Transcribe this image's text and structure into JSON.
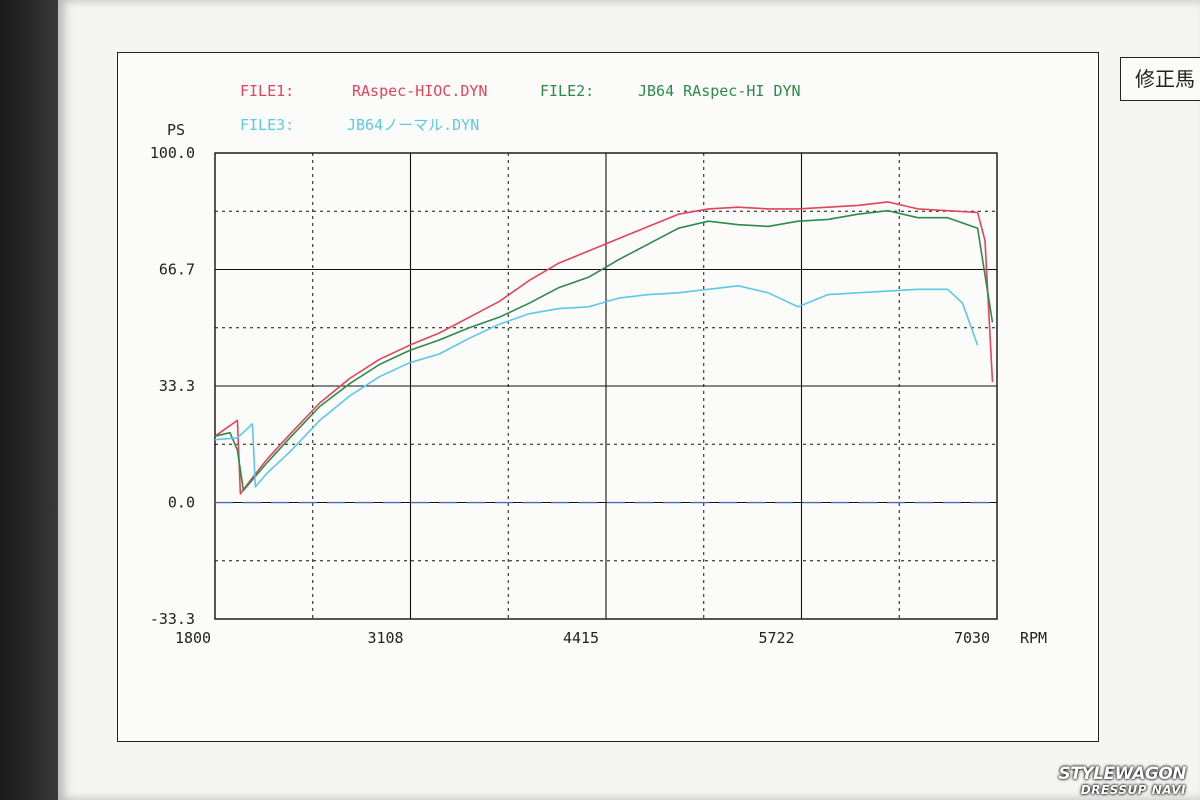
{
  "corner_tag": "修正馬",
  "watermark": {
    "line1": "STYLEWAGON",
    "line2": "DRESSUP NAVI"
  },
  "colors": {
    "file1": "#e0455a",
    "file2": "#2e8a4a",
    "file3": "#5cc8e8",
    "zero_line": "#4a6fb0",
    "grid": "#111111"
  },
  "chart_data": {
    "type": "line",
    "title": "",
    "ylabel": "PS",
    "xlabel": "RPM",
    "xlim": [
      1800,
      7030
    ],
    "ylim": [
      -33.3,
      100.0
    ],
    "x_ticks": [
      "1800",
      "3108",
      "4415",
      "5722",
      "7030"
    ],
    "y_ticks": [
      "100.0",
      "66.7",
      "33.3",
      "0.0",
      "-33.3"
    ],
    "legend": {
      "placement": "top",
      "entries": [
        {
          "label": "FILE1:",
          "file": "RAspec-HIOC.DYN"
        },
        {
          "label": "FILE2:",
          "file": "JB64 RAspec-HI DYN"
        },
        {
          "label": "FILE3:",
          "file": "JB64ノーマル.DYN"
        }
      ]
    },
    "grid": true,
    "series": [
      {
        "name": "RAspec-HIOC.DYN",
        "x": [
          1800,
          1950,
          1970,
          2030,
          2150,
          2300,
          2500,
          2700,
          2900,
          3100,
          3300,
          3500,
          3700,
          3900,
          4100,
          4300,
          4500,
          4700,
          4900,
          5100,
          5300,
          5500,
          5700,
          5900,
          6100,
          6300,
          6500,
          6700,
          6900,
          6950,
          7000
        ],
        "y": [
          19.0,
          23.5,
          2.5,
          6.0,
          12.5,
          19.5,
          28.5,
          35.5,
          41.0,
          45.0,
          48.5,
          53.0,
          57.5,
          63.5,
          68.5,
          72.0,
          75.5,
          79.0,
          82.5,
          84.0,
          84.5,
          84.0,
          84.0,
          84.5,
          85.0,
          86.0,
          84.0,
          83.5,
          83.0,
          75.0,
          34.5
        ]
      },
      {
        "name": "JB64 RAspec-HI DYN",
        "x": [
          1800,
          1900,
          1950,
          1990,
          2030,
          2150,
          2300,
          2500,
          2700,
          2900,
          3100,
          3300,
          3500,
          3700,
          3900,
          4100,
          4300,
          4400,
          4500,
          4700,
          4900,
          5100,
          5300,
          5500,
          5700,
          5900,
          6100,
          6300,
          6500,
          6700,
          6900,
          7000
        ],
        "y": [
          19.0,
          20.0,
          15.0,
          3.5,
          5.5,
          11.5,
          18.5,
          27.5,
          34.0,
          39.5,
          43.5,
          46.5,
          50.0,
          53.0,
          57.0,
          61.5,
          64.5,
          67.0,
          69.5,
          74.0,
          78.5,
          80.5,
          79.5,
          79.0,
          80.5,
          81.0,
          82.5,
          83.5,
          81.5,
          81.5,
          78.5,
          51.5
        ]
      },
      {
        "name": "JB64ノーマル.DYN",
        "x": [
          1800,
          1950,
          2050,
          2070,
          2150,
          2300,
          2500,
          2700,
          2900,
          3100,
          3300,
          3500,
          3700,
          3900,
          4100,
          4300,
          4500,
          4700,
          4900,
          5100,
          5300,
          5500,
          5700,
          5900,
          6100,
          6300,
          6500,
          6700,
          6800,
          6900
        ],
        "y": [
          18.0,
          18.5,
          22.5,
          4.5,
          8.5,
          14.5,
          23.5,
          30.5,
          36.0,
          40.0,
          42.5,
          47.0,
          51.0,
          54.0,
          55.5,
          56.0,
          58.5,
          59.5,
          60.0,
          61.0,
          62.0,
          60.0,
          56.0,
          59.5,
          60.0,
          60.5,
          61.0,
          61.0,
          57.0,
          45.0
        ]
      }
    ]
  }
}
